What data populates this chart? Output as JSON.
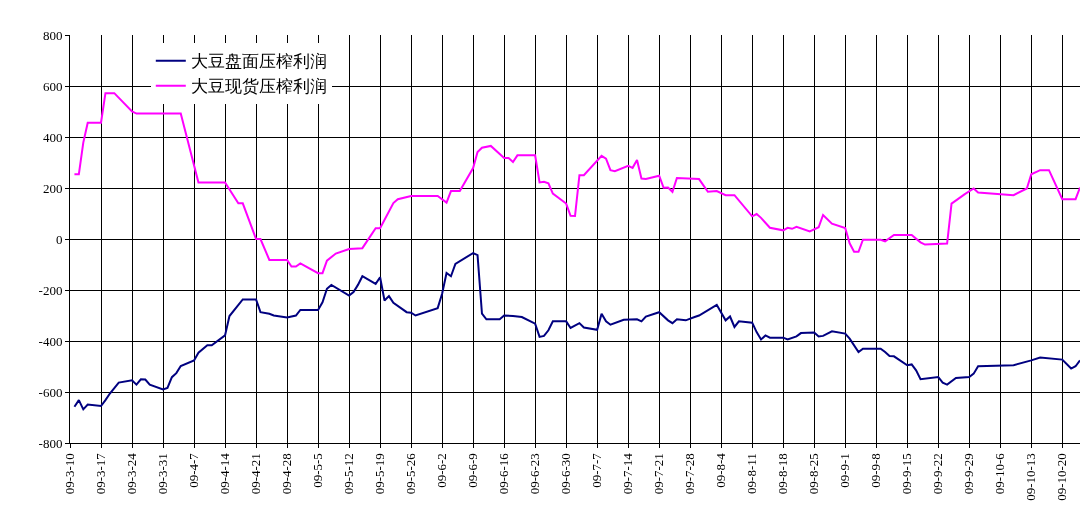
{
  "chart_data": {
    "type": "line",
    "series": [
      {
        "name": "大豆盘面压榨利润",
        "color": "#000080",
        "x": [
          "--03-11",
          "--03-12",
          "--03-13",
          "--03-14",
          "--03-17",
          "--03-18",
          "--03-19",
          "--03-21",
          "--03-24",
          "--03-25",
          "--03-26",
          "--03-27",
          "--03-28",
          "--03-31",
          "--04-01",
          "--04-02",
          "--04-03",
          "--04-04",
          "--04-07",
          "--04-08",
          "--04-10",
          "--04-11",
          "--04-14",
          "--04-15",
          "--04-18",
          "--04-21",
          "--04-22",
          "--04-24",
          "--04-25",
          "--04-28",
          "--04-30",
          "--05-01",
          "--05-05",
          "--05-06",
          "--05-07",
          "--05-08",
          "--05-12",
          "--05-13",
          "--05-14",
          "--05-15",
          "--05-18",
          "--05-19",
          "--05-20",
          "--05-21",
          "--05-22",
          "--05-25",
          "--05-26",
          "--05-27",
          "--06-01",
          "--06-02",
          "--06-03",
          "--06-04",
          "--06-05",
          "--06-09",
          "--06-10",
          "--06-11",
          "--06-12",
          "--06-15",
          "--06-16",
          "--06-18",
          "--06-20",
          "--06-23",
          "--06-24",
          "--06-25",
          "--06-26",
          "--06-27",
          "--06-30",
          "--07-01",
          "--07-03",
          "--07-04",
          "--07-07",
          "--07-08",
          "--07-09",
          "--07-10",
          "--07-13",
          "--07-16",
          "--07-17",
          "--07-18",
          "--07-21",
          "--07-23",
          "--07-24",
          "--07-25",
          "--07-27",
          "--07-29",
          "--07-30",
          "--08-03",
          "--08-05",
          "--08-06",
          "--08-07",
          "--08-08",
          "--08-11",
          "--08-12",
          "--08-13",
          "--08-14",
          "--08-15",
          "--08-18",
          "--08-19",
          "--08-21",
          "--08-22",
          "--08-25",
          "--08-26",
          "--08-27",
          "--08-29",
          "--09-01",
          "--09-02",
          "--09-04",
          "--09-05",
          "--09-09",
          "--09-10",
          "--09-11",
          "--09-12",
          "--09-15",
          "--09-16",
          "--09-17",
          "--09-18",
          "--09-22",
          "--09-23",
          "--09-24",
          "--09-26",
          "--09-29",
          "--09-30",
          "--10-01",
          "--10-09",
          "--10-13",
          "--10-15",
          "--10-20",
          "--10-22",
          "--10-23",
          "--10-24"
        ],
        "values": [
          -658,
          -632,
          -668,
          -649,
          -655,
          -632,
          -606,
          -563,
          -554,
          -571,
          -550,
          -551,
          -571,
          -590,
          -584,
          -542,
          -526,
          -498,
          -476,
          -446,
          -417,
          -417,
          -378,
          -302,
          -237,
          -237,
          -287,
          -293,
          -300,
          -308,
          -300,
          -278,
          -278,
          -248,
          -195,
          -180,
          -222,
          -208,
          -180,
          -146,
          -176,
          -150,
          -241,
          -224,
          -250,
          -287,
          -289,
          -300,
          -271,
          -215,
          -133,
          -146,
          -98,
          -55,
          -63,
          -293,
          -315,
          -315,
          -300,
          -302,
          -306,
          -332,
          -384,
          -380,
          -358,
          -323,
          -323,
          -349,
          -330,
          -347,
          -356,
          -293,
          -323,
          -336,
          -317,
          -315,
          -323,
          -304,
          -287,
          -319,
          -330,
          -315,
          -319,
          -306,
          -300,
          -258,
          -319,
          -304,
          -345,
          -323,
          -328,
          -365,
          -394,
          -378,
          -387,
          -387,
          -394,
          -382,
          -369,
          -367,
          -382,
          -380,
          -362,
          -371,
          -391,
          -443,
          -430,
          -430,
          -443,
          -459,
          -460,
          -495,
          -492,
          -515,
          -550,
          -541,
          -563,
          -571,
          -545,
          -541,
          -528,
          -499,
          -495,
          -476,
          -465,
          -473,
          -508,
          -499,
          -476
        ]
      },
      {
        "name": "大豆现货压榨利润",
        "color": "#ff00ff",
        "x": [
          "--03-11",
          "--03-12",
          "--03-13",
          "--03-14",
          "--03-17",
          "--03-18",
          "--03-20",
          "--03-24",
          "--03-25",
          "--04-04",
          "--04-08",
          "--04-14",
          "--04-17",
          "--04-18",
          "--04-21",
          "--04-22",
          "--04-24",
          "--04-28",
          "--04-29",
          "--04-30",
          "--05-01",
          "--05-05",
          "--05-06",
          "--05-07",
          "--05-09",
          "--05-12",
          "--05-15",
          "--05-18",
          "--05-19",
          "--05-22",
          "--05-23",
          "--05-26",
          "--06-01",
          "--06-03",
          "--06-04",
          "--06-06",
          "--06-09",
          "--06-10",
          "--06-11",
          "--06-13",
          "--06-16",
          "--06-17",
          "--06-18",
          "--06-19",
          "--06-23",
          "--06-24",
          "--06-25",
          "--06-26",
          "--06-27",
          "--06-30",
          "--07-01",
          "--07-02",
          "--07-03",
          "--07-04",
          "--07-08",
          "--07-09",
          "--07-10",
          "--07-11",
          "--07-14",
          "--07-15",
          "--07-16",
          "--07-17",
          "--07-18",
          "--07-21",
          "--07-22",
          "--07-23",
          "--07-24",
          "--07-25",
          "--07-30",
          "--08-01",
          "--08-03",
          "--08-05",
          "--08-07",
          "--08-11",
          "--08-12",
          "--08-13",
          "--08-15",
          "--08-18",
          "--08-19",
          "--08-20",
          "--08-21",
          "--08-24",
          "--08-26",
          "--08-27",
          "--08-29",
          "--09-01",
          "--09-02",
          "--09-03",
          "--09-04",
          "--09-05",
          "--09-09",
          "--09-10",
          "--09-12",
          "--09-16",
          "--09-18",
          "--09-19",
          "--09-24",
          "--09-25",
          "--09-28",
          "--09-30",
          "--10-01",
          "--10-09",
          "--10-12",
          "--10-13",
          "--10-15",
          "--10-17",
          "--10-20",
          "--10-23",
          "--10-24"
        ],
        "values": [
          254,
          254,
          378,
          456,
          456,
          572,
          572,
          500,
          492,
          492,
          222,
          222,
          140,
          140,
          0,
          0,
          -82,
          -82,
          -108,
          -108,
          -96,
          -134,
          -134,
          -85,
          -57,
          -39,
          -36,
          42,
          42,
          141,
          156,
          169,
          169,
          143,
          188,
          188,
          278,
          341,
          358,
          365,
          318,
          318,
          302,
          328,
          328,
          222,
          224,
          218,
          178,
          139,
          91,
          90,
          250,
          250,
          326,
          315,
          270,
          266,
          287,
          279,
          310,
          237,
          235,
          248,
          201,
          202,
          185,
          239,
          235,
          185,
          188,
          172,
          172,
          89,
          98,
          83,
          44,
          34,
          44,
          40,
          48,
          30,
          46,
          94,
          60,
          43,
          -17,
          -50,
          -50,
          -3,
          -3,
          -9,
          16,
          16,
          -13,
          -22,
          -18,
          139,
          176,
          198,
          182,
          172,
          198,
          254,
          270,
          270,
          156,
          156,
          202
        ]
      }
    ],
    "xlim": [
      "--03-10",
      "--10-24"
    ],
    "xticks": [
      {
        "value": "--03-10",
        "label": "09-3-10"
      },
      {
        "value": "--03-17",
        "label": "09-3-17"
      },
      {
        "value": "--03-24",
        "label": "09-3-24"
      },
      {
        "value": "--03-31",
        "label": "09-3-31"
      },
      {
        "value": "--04-07",
        "label": "09-4-7"
      },
      {
        "value": "--04-14",
        "label": "09-4-14"
      },
      {
        "value": "--04-21",
        "label": "09-4-21"
      },
      {
        "value": "--04-28",
        "label": "09-4-28"
      },
      {
        "value": "--05-05",
        "label": "09-5-5"
      },
      {
        "value": "--05-12",
        "label": "09-5-12"
      },
      {
        "value": "--05-19",
        "label": "09-5-19"
      },
      {
        "value": "--05-26",
        "label": "09-5-26"
      },
      {
        "value": "--06-02",
        "label": "09-6-2"
      },
      {
        "value": "--06-09",
        "label": "09-6-9"
      },
      {
        "value": "--06-16",
        "label": "09-6-16"
      },
      {
        "value": "--06-23",
        "label": "09-6-23"
      },
      {
        "value": "--06-30",
        "label": "09-6-30"
      },
      {
        "value": "--07-07",
        "label": "09-7-7"
      },
      {
        "value": "--07-14",
        "label": "09-7-14"
      },
      {
        "value": "--07-21",
        "label": "09-7-21"
      },
      {
        "value": "--07-28",
        "label": "09-7-28"
      },
      {
        "value": "--08-04",
        "label": "09-8-4"
      },
      {
        "value": "--08-11",
        "label": "09-8-11"
      },
      {
        "value": "--08-18",
        "label": "09-8-18"
      },
      {
        "value": "--08-25",
        "label": "09-8-25"
      },
      {
        "value": "--09-01",
        "label": "09-9-1"
      },
      {
        "value": "--09-08",
        "label": "09-9-8"
      },
      {
        "value": "--09-15",
        "label": "09-9-15"
      },
      {
        "value": "--09-22",
        "label": "09-9-22"
      },
      {
        "value": "--09-29",
        "label": "09-9-29"
      },
      {
        "value": "--10-06",
        "label": "09-10-6"
      },
      {
        "value": "--10-13",
        "label": "09-10-13"
      },
      {
        "value": "--10-20",
        "label": "09-10-20"
      }
    ],
    "ylim": [
      -800,
      800
    ],
    "yticks": [
      -800,
      -600,
      -400,
      -200,
      0,
      200,
      400,
      600,
      800
    ],
    "grid": true,
    "legend": "top left",
    "line_style": "solid",
    "marker": "none"
  }
}
